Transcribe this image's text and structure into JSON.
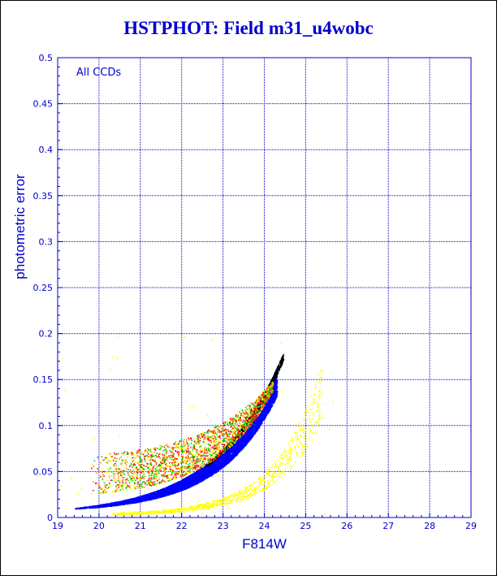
{
  "chart_data": {
    "type": "scatter",
    "title": "HSTPHOT: Field m31_u4wobc",
    "xlabel": "F814W",
    "ylabel": "photometric error",
    "xlim": [
      19,
      29
    ],
    "ylim": [
      0,
      0.5
    ],
    "x_ticks": [
      "19",
      "20",
      "21",
      "22",
      "23",
      "24",
      "25",
      "26",
      "27",
      "28",
      "29"
    ],
    "y_ticks": [
      "0",
      "0.05",
      "0.1",
      "0.15",
      "0.2",
      "0.25",
      "0.3",
      "0.35",
      "0.4",
      "0.45",
      "0.5"
    ],
    "grid": true,
    "annotation": "All CCDs",
    "colors": {
      "axes": "#0000cc",
      "title": "#0000cc",
      "main_sequence": "#0000ff",
      "edge": "#000000",
      "outliers": [
        "#ff0000",
        "#00cc00",
        "#ffff00",
        "#ff8800"
      ],
      "secondary": "#ffff00"
    },
    "series": [
      {
        "values_desc": "main error locus",
        "color": "#0000ff",
        "points": [
          [
            19.4,
            0.008
          ],
          [
            20.0,
            0.013
          ],
          [
            20.5,
            0.02
          ],
          [
            21.0,
            0.03
          ],
          [
            21.5,
            0.041
          ],
          [
            22.0,
            0.055
          ],
          [
            22.5,
            0.072
          ],
          [
            23.0,
            0.095
          ],
          [
            23.5,
            0.128
          ],
          [
            24.0,
            0.175
          ],
          [
            24.3,
            0.215
          ]
        ]
      },
      {
        "values_desc": "faint edge",
        "color": "#000000",
        "points": [
          [
            23.0,
            0.09
          ],
          [
            23.5,
            0.12
          ],
          [
            24.0,
            0.16
          ],
          [
            24.3,
            0.215
          ]
        ]
      },
      {
        "values_desc": "secondary sequence",
        "color": "#ffff00",
        "points": [
          [
            20.5,
            0.002
          ],
          [
            21.5,
            0.003
          ],
          [
            22.5,
            0.008
          ],
          [
            23.5,
            0.018
          ],
          [
            24.0,
            0.03
          ],
          [
            24.5,
            0.055
          ],
          [
            25.0,
            0.09
          ],
          [
            25.5,
            0.13
          ],
          [
            25.8,
            0.21
          ]
        ]
      }
    ]
  }
}
